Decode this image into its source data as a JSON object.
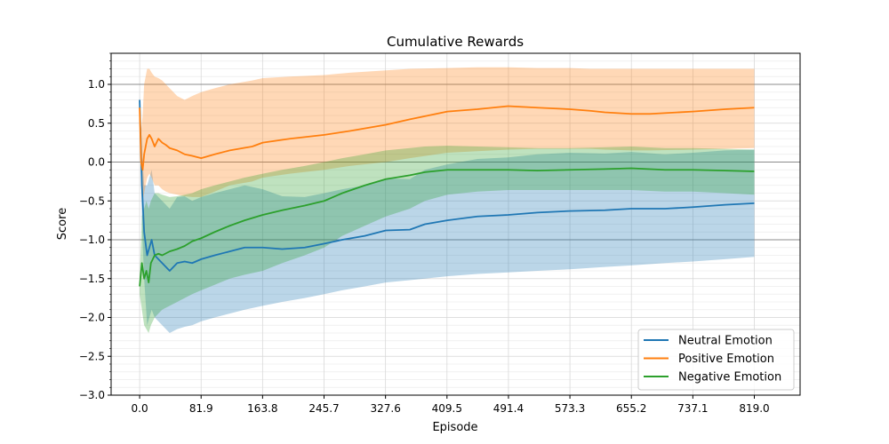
{
  "chart_data": {
    "type": "line",
    "title": "Cumulative Rewards",
    "xlabel": "Episode",
    "ylabel": "Score",
    "xlim": [
      -38,
      880
    ],
    "ylim": [
      -3.0,
      1.4
    ],
    "x_ticks": [
      0.0,
      81.9,
      163.8,
      245.7,
      327.6,
      409.5,
      491.4,
      573.3,
      655.2,
      737.1,
      819.0
    ],
    "x_tick_labels": [
      "0.0",
      "81.9",
      "163.8",
      "245.7",
      "327.6",
      "409.5",
      "491.4",
      "573.3",
      "655.2",
      "737.1",
      "819.0"
    ],
    "y_ticks": [
      -3.0,
      -2.5,
      -2.0,
      -1.5,
      -1.0,
      -0.5,
      0.0,
      0.5,
      1.0
    ],
    "y_tick_labels": [
      "−3.0",
      "−2.5",
      "−2.0",
      "−1.5",
      "−1.0",
      "−0.5",
      "0.0",
      "0.5",
      "1.0"
    ],
    "y_minor_step": 0.1,
    "reference_lines": [
      -1.0,
      0.0,
      1.0
    ],
    "grid": true,
    "legend_position": "bottom-right",
    "series": [
      {
        "name": "Neutral Emotion",
        "color": "#1f77b4",
        "x": [
          0,
          3,
          6,
          10,
          13,
          16,
          20,
          25,
          30,
          40,
          50,
          60,
          70,
          82,
          100,
          120,
          140,
          164,
          190,
          220,
          246,
          270,
          300,
          328,
          360,
          380,
          410,
          450,
          491,
          530,
          573,
          620,
          655,
          700,
          737,
          780,
          819
        ],
        "y": [
          0.8,
          -0.3,
          -0.9,
          -1.2,
          -1.1,
          -1.0,
          -1.2,
          -1.25,
          -1.3,
          -1.4,
          -1.3,
          -1.28,
          -1.3,
          -1.25,
          -1.2,
          -1.15,
          -1.1,
          -1.1,
          -1.12,
          -1.1,
          -1.05,
          -1.0,
          -0.95,
          -0.88,
          -0.87,
          -0.8,
          -0.75,
          -0.7,
          -0.68,
          -0.65,
          -0.63,
          -0.62,
          -0.6,
          -0.6,
          -0.58,
          -0.55,
          -0.53
        ],
        "lower": [
          0.75,
          -0.8,
          -1.5,
          -2.1,
          -2.0,
          -1.9,
          -2.0,
          -2.05,
          -2.1,
          -2.2,
          -2.15,
          -2.12,
          -2.1,
          -2.05,
          -2.0,
          -1.95,
          -1.9,
          -1.85,
          -1.8,
          -1.75,
          -1.7,
          -1.65,
          -1.6,
          -1.55,
          -1.52,
          -1.5,
          -1.47,
          -1.44,
          -1.42,
          -1.4,
          -1.38,
          -1.35,
          -1.33,
          -1.3,
          -1.28,
          -1.25,
          -1.22
        ],
        "upper": [
          0.85,
          0.2,
          -0.3,
          -0.3,
          -0.2,
          -0.1,
          -0.4,
          -0.45,
          -0.5,
          -0.6,
          -0.45,
          -0.44,
          -0.5,
          -0.45,
          -0.4,
          -0.35,
          -0.3,
          -0.35,
          -0.44,
          -0.45,
          -0.4,
          -0.35,
          -0.3,
          -0.21,
          -0.22,
          -0.1,
          -0.03,
          0.04,
          0.06,
          0.1,
          0.12,
          0.11,
          0.13,
          0.1,
          0.12,
          0.15,
          0.16
        ]
      },
      {
        "name": "Positive Emotion",
        "color": "#ff7f0e",
        "x": [
          0,
          2,
          4,
          6,
          8,
          10,
          13,
          16,
          20,
          25,
          30,
          35,
          40,
          50,
          60,
          70,
          82,
          100,
          120,
          150,
          164,
          200,
          246,
          280,
          328,
          360,
          410,
          450,
          491,
          530,
          573,
          600,
          620,
          655,
          680,
          737,
          780,
          819
        ],
        "y": [
          0.7,
          0.0,
          -0.1,
          0.1,
          0.2,
          0.3,
          0.35,
          0.3,
          0.2,
          0.3,
          0.25,
          0.22,
          0.18,
          0.15,
          0.1,
          0.08,
          0.05,
          0.1,
          0.15,
          0.2,
          0.25,
          0.3,
          0.35,
          0.4,
          0.48,
          0.55,
          0.65,
          0.68,
          0.72,
          0.7,
          0.68,
          0.66,
          0.64,
          0.62,
          0.62,
          0.65,
          0.68,
          0.7
        ],
        "lower": [
          0.65,
          -0.3,
          -0.5,
          -0.4,
          -0.3,
          -0.2,
          -0.15,
          -0.2,
          -0.3,
          -0.3,
          -0.35,
          -0.38,
          -0.4,
          -0.42,
          -0.44,
          -0.45,
          -0.45,
          -0.38,
          -0.3,
          -0.25,
          -0.2,
          -0.15,
          -0.1,
          -0.05,
          0.0,
          0.05,
          0.12,
          0.14,
          0.16,
          0.17,
          0.17,
          0.17,
          0.16,
          0.15,
          0.15,
          0.16,
          0.17,
          0.18
        ],
        "upper": [
          0.75,
          0.4,
          0.6,
          1.0,
          1.1,
          1.2,
          1.2,
          1.15,
          1.1,
          1.08,
          1.05,
          1.0,
          0.95,
          0.85,
          0.8,
          0.85,
          0.9,
          0.95,
          1.0,
          1.05,
          1.08,
          1.1,
          1.12,
          1.15,
          1.18,
          1.2,
          1.21,
          1.22,
          1.22,
          1.21,
          1.21,
          1.2,
          1.2,
          1.2,
          1.2,
          1.2,
          1.2,
          1.2
        ]
      },
      {
        "name": "Negative Emotion",
        "color": "#2ca02c",
        "x": [
          0,
          3,
          6,
          9,
          12,
          15,
          20,
          25,
          30,
          40,
          50,
          60,
          70,
          82,
          100,
          120,
          140,
          164,
          190,
          220,
          246,
          270,
          300,
          328,
          360,
          380,
          410,
          450,
          491,
          530,
          573,
          620,
          655,
          700,
          737,
          780,
          819
        ],
        "y": [
          -1.6,
          -1.3,
          -1.5,
          -1.4,
          -1.55,
          -1.3,
          -1.2,
          -1.18,
          -1.2,
          -1.15,
          -1.12,
          -1.08,
          -1.02,
          -0.98,
          -0.9,
          -0.82,
          -0.75,
          -0.68,
          -0.62,
          -0.56,
          -0.5,
          -0.4,
          -0.3,
          -0.22,
          -0.17,
          -0.13,
          -0.1,
          -0.1,
          -0.1,
          -0.11,
          -0.1,
          -0.09,
          -0.08,
          -0.1,
          -0.1,
          -0.11,
          -0.12
        ],
        "lower": [
          -1.7,
          -1.9,
          -2.1,
          -2.15,
          -2.2,
          -2.1,
          -2.0,
          -1.95,
          -1.9,
          -1.85,
          -1.8,
          -1.75,
          -1.7,
          -1.65,
          -1.58,
          -1.5,
          -1.45,
          -1.4,
          -1.3,
          -1.2,
          -1.1,
          -0.95,
          -0.82,
          -0.7,
          -0.6,
          -0.5,
          -0.42,
          -0.38,
          -0.36,
          -0.36,
          -0.36,
          -0.36,
          -0.36,
          -0.38,
          -0.38,
          -0.4,
          -0.42
        ],
        "upper": [
          -1.5,
          -0.7,
          -0.6,
          -0.5,
          -0.6,
          -0.5,
          -0.4,
          -0.4,
          -0.42,
          -0.45,
          -0.44,
          -0.42,
          -0.4,
          -0.35,
          -0.3,
          -0.25,
          -0.2,
          -0.15,
          -0.1,
          -0.05,
          0.0,
          0.05,
          0.1,
          0.15,
          0.18,
          0.2,
          0.21,
          0.2,
          0.19,
          0.18,
          0.18,
          0.19,
          0.2,
          0.18,
          0.18,
          0.17,
          0.16
        ]
      }
    ]
  }
}
